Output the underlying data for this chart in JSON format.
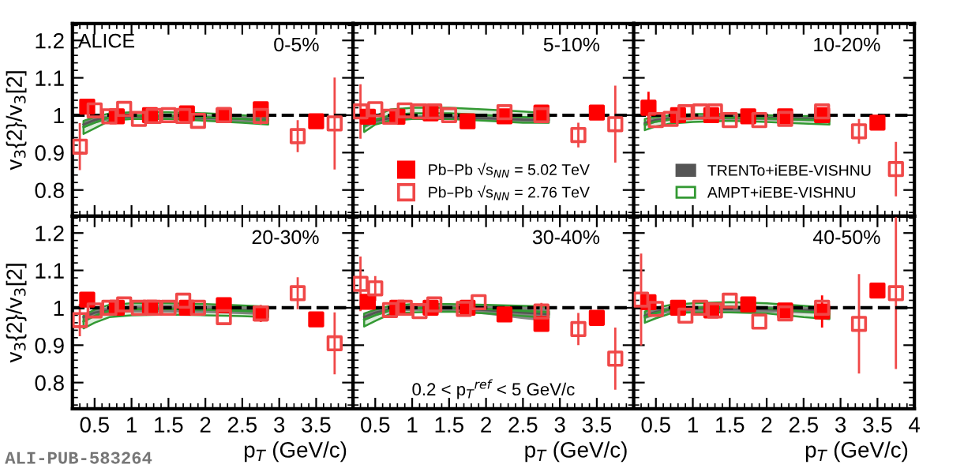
{
  "chart_data": [
    {
      "type": "scatter",
      "title": "0-5%",
      "ylabel": "v$_{3}${2}/v$_{3}$[2]",
      "annotations": [
        "ALICE"
      ],
      "xlim": [
        0.2,
        4.0
      ],
      "xticks": [
        0.5,
        1,
        1.5,
        2,
        2.5,
        3,
        3.5
      ],
      "ylim": [
        0.73,
        1.245
      ],
      "yticks": [
        0.8,
        0.9,
        1,
        1.1,
        1.2
      ],
      "tick_labels": "y",
      "ref_lines": [
        {
          "axis": "y",
          "value": 1,
          "color": "#000000",
          "line_style": "dashed"
        }
      ],
      "series": [
        {
          "type": "line",
          "color": "#555555",
          "x": [
            0.35,
            0.5,
            0.7,
            1.0,
            1.5,
            2.0,
            2.5,
            2.85
          ],
          "values": [
            0.975,
            0.987,
            0.994,
            0.997,
            0.997,
            0.993,
            0.99,
            0.988
          ],
          "lower": [
            0.965,
            0.978,
            0.987,
            0.99,
            0.99,
            0.986,
            0.981,
            0.978
          ],
          "upper": [
            0.985,
            0.995,
            1.0,
            1.003,
            1.003,
            1.0,
            0.998,
            0.997
          ]
        },
        {
          "type": "line",
          "color": "#339933",
          "x": [
            0.35,
            0.5,
            0.7,
            1.0,
            1.5,
            2.0,
            2.5,
            2.85
          ],
          "values": [
            0.968,
            0.98,
            0.995,
            0.999,
            0.999,
            0.995,
            0.99,
            0.985
          ],
          "lower": [
            0.95,
            0.965,
            0.985,
            0.99,
            0.99,
            0.985,
            0.98,
            0.975
          ],
          "upper": [
            0.985,
            0.995,
            1.005,
            1.008,
            1.008,
            1.005,
            1.0,
            0.995
          ]
        },
        {
          "type": "scatter",
          "marker": "square",
          "color": "#ff0000",
          "x": [
            0.4,
            0.8,
            1.25,
            1.75,
            2.25,
            2.75,
            3.5
          ],
          "values": [
            1.023,
            0.997,
            1.0,
            1.005,
            1.0,
            1.016,
            0.984
          ]
        },
        {
          "type": "scatter",
          "marker": "square",
          "color": "#f04848",
          "x": [
            0.3,
            0.5,
            0.7,
            0.9,
            1.1,
            1.3,
            1.5,
            1.7,
            1.9,
            2.25,
            2.75,
            3.25,
            3.75
          ],
          "values": [
            0.916,
            1.013,
            0.997,
            1.017,
            0.99,
            0.998,
            1.0,
            0.998,
            0.985,
            1.0,
            0.998,
            0.944,
            0.978
          ],
          "errors": [
            0.06,
            null,
            null,
            null,
            null,
            null,
            null,
            null,
            null,
            null,
            0.02,
            0.04,
            0.12
          ]
        }
      ]
    },
    {
      "type": "scatter",
      "title": "5-10%",
      "xlim": [
        0.2,
        4.0
      ],
      "xticks": [
        0.5,
        1,
        1.5,
        2,
        2.5,
        3,
        3.5
      ],
      "ylim": [
        0.73,
        1.245
      ],
      "yticks": [
        0.8,
        0.9,
        1,
        1.1,
        1.2
      ],
      "tick_labels": false,
      "legend": "bottom",
      "ref_lines": [
        {
          "axis": "y",
          "value": 1,
          "color": "#000000",
          "line_style": "dashed"
        }
      ],
      "series": [
        {
          "type": "line",
          "color": "#555555",
          "x": [
            0.35,
            0.5,
            0.7,
            1.0,
            1.5,
            2.0,
            2.5,
            2.85
          ],
          "values": [
            0.975,
            0.986,
            0.992,
            0.994,
            0.994,
            0.992,
            0.988,
            0.987
          ],
          "lower": [
            0.965,
            0.978,
            0.985,
            0.988,
            0.988,
            0.985,
            0.98,
            0.978
          ],
          "upper": [
            0.985,
            0.993,
            0.998,
            1.0,
            1.0,
            0.998,
            0.996,
            0.995
          ]
        },
        {
          "type": "line",
          "color": "#339933",
          "x": [
            0.35,
            0.5,
            0.7,
            1.0,
            1.5,
            2.0,
            2.5,
            2.85
          ],
          "values": [
            0.97,
            0.987,
            1.0,
            1.005,
            1.005,
            1.0,
            0.995,
            0.993
          ],
          "lower": [
            0.955,
            0.975,
            0.985,
            0.99,
            0.99,
            0.985,
            0.98,
            0.98
          ],
          "upper": [
            0.985,
            0.998,
            1.015,
            1.02,
            1.02,
            1.015,
            1.01,
            1.005
          ]
        },
        {
          "type": "scatter",
          "marker": "square",
          "name": "Pb–Pb √s$_{NN}$ = 5.02 TeV",
          "color": "#ff0000",
          "x": [
            0.4,
            0.8,
            1.25,
            1.75,
            2.25,
            2.75,
            3.5
          ],
          "values": [
            0.996,
            0.996,
            1.005,
            0.984,
            0.997,
            1.007,
            1.007
          ]
        },
        {
          "type": "scatter",
          "marker": "square",
          "name": "Pb–Pb √s$_{NN}$ = 2.76 TeV",
          "color": "#f04848",
          "x": [
            0.3,
            0.5,
            0.7,
            0.9,
            1.1,
            1.3,
            1.5,
            2.25,
            2.75,
            3.25,
            3.75
          ],
          "values": [
            1.01,
            1.016,
            0.996,
            1.013,
            1.01,
            1.01,
            1.0,
            1.008,
            1.0,
            0.947,
            0.976
          ],
          "errors": [
            0.07,
            null,
            null,
            null,
            null,
            null,
            null,
            null,
            null,
            0.03,
            0.1
          ]
        }
      ]
    },
    {
      "type": "scatter",
      "title": "10-20%",
      "xlim": [
        0.2,
        4.0
      ],
      "xticks": [
        0.5,
        1,
        1.5,
        2,
        2.5,
        3,
        3.5,
        4
      ],
      "ylim": [
        0.73,
        1.245
      ],
      "yticks": [
        0.8,
        0.9,
        1,
        1.1,
        1.2
      ],
      "tick_labels": false,
      "legend": "bottom",
      "ref_lines": [
        {
          "axis": "y",
          "value": 1,
          "color": "#000000",
          "line_style": "dashed"
        }
      ],
      "series": [
        {
          "type": "line",
          "name": "TRENTo+iEBE-VISHNU",
          "color": "#555555",
          "x": [
            0.35,
            0.5,
            0.7,
            1.0,
            1.5,
            2.0,
            2.5,
            2.85
          ],
          "values": [
            0.978,
            0.987,
            0.992,
            0.994,
            0.994,
            0.993,
            0.991,
            0.991
          ],
          "lower": [
            0.97,
            0.98,
            0.985,
            0.988,
            0.988,
            0.986,
            0.984,
            0.983
          ],
          "upper": [
            0.985,
            0.993,
            0.998,
            1.0,
            1.0,
            0.999,
            0.998,
            0.998
          ]
        },
        {
          "type": "line",
          "name": "AMPT+iEBE-VISHNU",
          "color": "#339933",
          "x": [
            0.35,
            0.5,
            0.7,
            1.0,
            1.5,
            2.0,
            2.5,
            2.85
          ],
          "values": [
            0.975,
            0.983,
            0.989,
            0.993,
            0.994,
            0.991,
            0.988,
            0.986
          ],
          "lower": [
            0.96,
            0.97,
            0.978,
            0.982,
            0.985,
            0.982,
            0.978,
            0.975
          ],
          "upper": [
            0.99,
            0.995,
            1.0,
            1.003,
            1.003,
            1.0,
            0.998,
            0.997
          ]
        },
        {
          "type": "scatter",
          "marker": "square",
          "color": "#ff0000",
          "x": [
            0.4,
            0.8,
            1.25,
            1.75,
            2.25,
            2.75,
            3.5
          ],
          "values": [
            1.02,
            1.0,
            1.0,
            0.997,
            0.997,
            1.0,
            0.98
          ],
          "errors": [
            0.04,
            null,
            null,
            null,
            null,
            null,
            null
          ]
        },
        {
          "type": "scatter",
          "marker": "square",
          "color": "#f04848",
          "x": [
            0.5,
            0.7,
            0.9,
            1.1,
            1.3,
            1.5,
            1.9,
            2.25,
            2.75,
            3.25,
            3.75
          ],
          "values": [
            0.987,
            0.99,
            1.008,
            1.01,
            1.01,
            0.987,
            0.987,
            0.99,
            1.01,
            0.957,
            0.856
          ],
          "errors": [
            null,
            null,
            null,
            null,
            null,
            null,
            null,
            null,
            null,
            0.03,
            0.07
          ]
        }
      ]
    },
    {
      "type": "scatter",
      "title": "20-30%",
      "ylabel": "v$_{3}${2}/v$_{3}$[2]",
      "xlabel": "p$_{T}$ (GeV/c)",
      "annotations": [
        "ALI-PUB-583264"
      ],
      "xlim": [
        0.2,
        4.0
      ],
      "xticks": [
        0.5,
        1,
        1.5,
        2,
        2.5,
        3,
        3.5
      ],
      "ylim": [
        0.73,
        1.245
      ],
      "yticks": [
        0.8,
        0.9,
        1,
        1.1,
        1.2
      ],
      "ref_lines": [
        {
          "axis": "y",
          "value": 1,
          "color": "#000000",
          "line_style": "dashed"
        }
      ],
      "series": [
        {
          "type": "line",
          "color": "#555555",
          "x": [
            0.35,
            0.5,
            0.7,
            1.0,
            1.5,
            2.0,
            2.5,
            2.85
          ],
          "values": [
            0.975,
            0.987,
            0.994,
            0.998,
            0.998,
            0.996,
            0.994,
            0.991
          ],
          "lower": [
            0.965,
            0.978,
            0.985,
            0.988,
            0.988,
            0.986,
            0.983,
            0.98
          ],
          "upper": [
            0.985,
            0.995,
            1.003,
            1.007,
            1.008,
            1.006,
            1.004,
            1.002
          ]
        },
        {
          "type": "line",
          "color": "#339933",
          "x": [
            0.35,
            0.5,
            0.7,
            1.0,
            1.5,
            2.0,
            2.5,
            2.85
          ],
          "values": [
            0.963,
            0.978,
            0.992,
            0.996,
            0.997,
            0.995,
            0.992,
            0.989
          ],
          "lower": [
            0.945,
            0.96,
            0.975,
            0.98,
            0.982,
            0.98,
            0.978,
            0.975
          ],
          "upper": [
            0.98,
            0.995,
            1.008,
            1.012,
            1.012,
            1.01,
            1.006,
            1.003
          ]
        },
        {
          "type": "scatter",
          "marker": "square",
          "color": "#ff0000",
          "x": [
            0.4,
            0.8,
            1.25,
            1.75,
            2.25,
            2.75,
            3.5
          ],
          "values": [
            1.022,
            1.0,
            1.0,
            1.0,
            1.007,
            0.985,
            0.969
          ]
        },
        {
          "type": "scatter",
          "marker": "square",
          "color": "#f04848",
          "x": [
            0.3,
            0.5,
            0.7,
            0.9,
            1.1,
            1.3,
            1.5,
            1.7,
            1.9,
            2.25,
            2.75,
            3.25,
            3.75
          ],
          "values": [
            0.967,
            0.993,
            1.0,
            1.009,
            1.0,
            1.0,
            1.0,
            1.019,
            1.0,
            0.975,
            0.985,
            1.039,
            0.905
          ],
          "errors": [
            0.04,
            null,
            null,
            null,
            null,
            null,
            null,
            null,
            null,
            null,
            0.02,
            0.04,
            0.08
          ]
        }
      ]
    },
    {
      "type": "scatter",
      "title": "30-40%",
      "xlabel": "p$_{T}$ (GeV/c)",
      "annotations": [
        "0.2 < p$_{T}$$^{ref}$ < 5 GeV/c"
      ],
      "xlim": [
        0.2,
        4.0
      ],
      "xticks": [
        0.5,
        1,
        1.5,
        2,
        2.5,
        3,
        3.5
      ],
      "ylim": [
        0.73,
        1.245
      ],
      "yticks": [
        0.8,
        0.9,
        1,
        1.1,
        1.2
      ],
      "tick_labels": "x",
      "ref_lines": [
        {
          "axis": "y",
          "value": 1,
          "color": "#000000",
          "line_style": "dashed"
        }
      ],
      "series": [
        {
          "type": "line",
          "color": "#555555",
          "x": [
            0.35,
            0.5,
            0.7,
            1.0,
            1.5,
            2.0,
            2.5,
            2.85
          ],
          "values": [
            0.975,
            0.987,
            0.996,
            1.0,
            0.999,
            0.994,
            0.987,
            0.983
          ],
          "lower": [
            0.965,
            0.978,
            0.988,
            0.992,
            0.99,
            0.982,
            0.97,
            0.963
          ],
          "upper": [
            0.985,
            0.995,
            1.003,
            1.007,
            1.008,
            1.006,
            1.004,
            1.003
          ]
        },
        {
          "type": "line",
          "color": "#339933",
          "x": [
            0.35,
            0.5,
            0.7,
            1.0,
            1.5,
            2.0,
            2.5,
            2.85
          ],
          "values": [
            0.968,
            0.98,
            0.994,
            0.999,
            1.0,
            0.997,
            0.992,
            0.988
          ],
          "lower": [
            0.95,
            0.965,
            0.983,
            0.988,
            0.99,
            0.985,
            0.978,
            0.973
          ],
          "upper": [
            0.985,
            0.995,
            1.005,
            1.01,
            1.01,
            1.008,
            1.005,
            1.003
          ]
        },
        {
          "type": "scatter",
          "marker": "square",
          "color": "#ff0000",
          "x": [
            0.4,
            0.8,
            1.25,
            1.75,
            2.25,
            2.75,
            3.5
          ],
          "values": [
            1.016,
            1.0,
            1.0,
            1.0,
            0.982,
            0.957,
            0.973
          ]
        },
        {
          "type": "scatter",
          "marker": "square",
          "color": "#f04848",
          "x": [
            0.3,
            0.5,
            0.7,
            0.9,
            1.1,
            1.3,
            1.7,
            1.9,
            2.75,
            3.25,
            3.75
          ],
          "values": [
            1.064,
            1.052,
            0.994,
            1.0,
            0.991,
            1.009,
            0.997,
            1.015,
            0.99,
            0.943,
            0.864
          ],
          "errors": [
            0.07,
            0.03,
            null,
            null,
            null,
            null,
            null,
            null,
            0.02,
            0.04,
            0.08
          ]
        }
      ]
    },
    {
      "type": "scatter",
      "title": "40-50%",
      "xlabel": "p$_{T}$ (GeV/c)",
      "xlim": [
        0.2,
        4.0
      ],
      "xticks": [
        0.5,
        1,
        1.5,
        2,
        2.5,
        3,
        3.5,
        4
      ],
      "ylim": [
        0.73,
        1.245
      ],
      "yticks": [
        0.8,
        0.9,
        1,
        1.1,
        1.2
      ],
      "tick_labels": "x",
      "ref_lines": [
        {
          "axis": "y",
          "value": 1,
          "color": "#000000",
          "line_style": "dashed"
        }
      ],
      "series": [
        {
          "type": "line",
          "color": "#555555",
          "x": [
            0.35,
            0.5,
            0.7,
            1.0,
            1.5,
            2.0,
            2.5,
            2.85
          ],
          "values": [
            0.979,
            0.989,
            0.996,
            0.998,
            0.998,
            0.996,
            0.994,
            0.992
          ],
          "lower": [
            0.97,
            0.98,
            0.988,
            0.99,
            0.99,
            0.988,
            0.985,
            0.983
          ],
          "upper": [
            0.988,
            0.997,
            1.003,
            1.005,
            1.006,
            1.004,
            1.002,
            1.0
          ]
        },
        {
          "type": "line",
          "color": "#339933",
          "x": [
            0.35,
            0.5,
            0.7,
            1.0,
            1.5,
            2.0,
            2.5,
            2.85
          ],
          "values": [
            0.975,
            0.986,
            0.997,
            1.0,
            1.002,
            0.999,
            0.99,
            0.985
          ],
          "lower": [
            0.96,
            0.972,
            0.985,
            0.988,
            0.988,
            0.985,
            0.975,
            0.97
          ],
          "upper": [
            0.99,
            1.0,
            1.008,
            1.012,
            1.015,
            1.012,
            1.005,
            1.0
          ]
        },
        {
          "type": "scatter",
          "marker": "square",
          "color": "#ff0000",
          "x": [
            0.4,
            0.8,
            1.25,
            1.75,
            2.25,
            2.75,
            3.5
          ],
          "values": [
            1.015,
            1.0,
            0.993,
            1.009,
            0.993,
            0.99,
            1.046
          ],
          "errors": [
            null,
            null,
            null,
            null,
            null,
            0.04,
            null
          ]
        },
        {
          "type": "scatter",
          "marker": "square",
          "color": "#f04848",
          "x": [
            0.3,
            0.5,
            0.9,
            1.1,
            1.3,
            1.5,
            1.9,
            2.25,
            2.75,
            3.25,
            3.75
          ],
          "values": [
            1.022,
            0.997,
            0.979,
            1.0,
            0.993,
            1.019,
            0.963,
            0.985,
            1.0,
            0.957,
            1.039
          ],
          "errors": [
            0.12,
            null,
            null,
            null,
            null,
            null,
            null,
            null,
            null,
            0.13,
            0.2
          ]
        }
      ]
    }
  ]
}
